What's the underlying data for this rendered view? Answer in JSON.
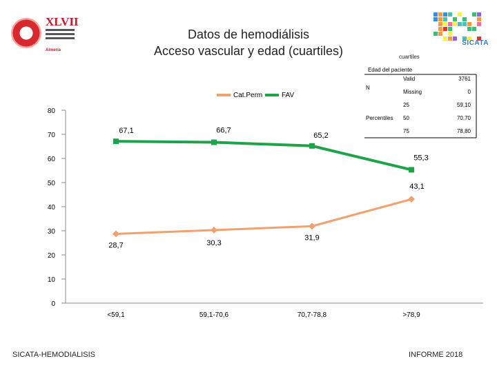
{
  "header": {
    "title_line1": "Datos de hemodiálisis",
    "title_line2": "Acceso vascular y edad (cuartiles)",
    "logo_left_number": "XLVII",
    "logo_left_city": "Almería",
    "logo_right_brand": "SICATA"
  },
  "stats_table": {
    "caption": "cuartiles",
    "title": "Edad del paciente",
    "rows": [
      {
        "group": "N",
        "label": "Valid",
        "value": "3761"
      },
      {
        "group": "",
        "label": "Missing",
        "value": "0"
      },
      {
        "group": "",
        "label": "25",
        "value": "59,10"
      },
      {
        "group": "Percentiles",
        "label": "50",
        "value": "70,70"
      },
      {
        "group": "",
        "label": "75",
        "value": "78,80"
      }
    ]
  },
  "chart_data": {
    "type": "line",
    "categories": [
      "<59,1",
      "59,1-70,6",
      "70,7-78,8",
      ">78,9"
    ],
    "series": [
      {
        "name": "Cat.Perm",
        "values": [
          28.7,
          30.3,
          31.9,
          43.1
        ],
        "labels": [
          "28,7",
          "30,3",
          "31,9",
          "43,1"
        ],
        "color": "#f2a06e",
        "marker": "diamond"
      },
      {
        "name": "FAV",
        "values": [
          67.1,
          66.7,
          65.2,
          55.3
        ],
        "labels": [
          "67,1",
          "66,7",
          "65,2",
          "55,3"
        ],
        "color": "#1fa34a",
        "marker": "square"
      }
    ],
    "y_ticks": [
      "0",
      "10",
      "20",
      "30",
      "40",
      "50",
      "60",
      "70",
      "80"
    ],
    "ylim": [
      0,
      80
    ],
    "legend_position": "top",
    "grid": false
  },
  "footer": {
    "left": "SICATA-HEMODIALISIS",
    "right": "INFORME 2018"
  }
}
